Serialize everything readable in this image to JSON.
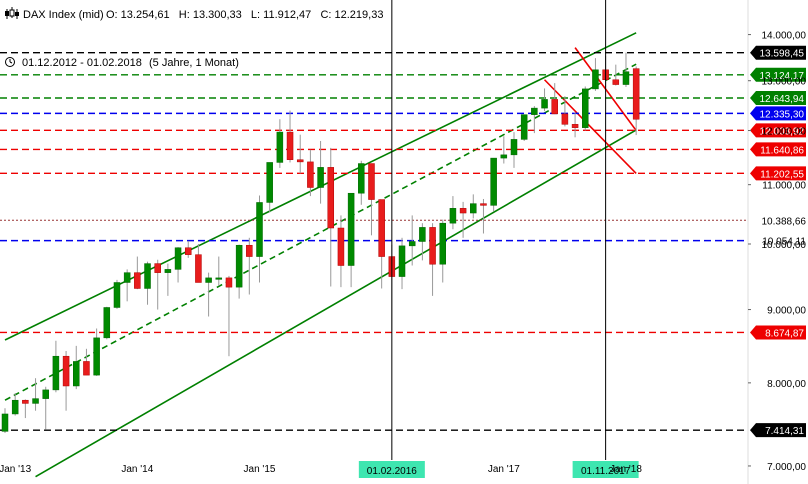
{
  "header": {
    "symbol_icon": "candlestick-icon",
    "title": "DAX Index (mid)",
    "ohlc": "O: 13.254,61   H: 13.300,33   L: 11.912,47   C: 12.219,33",
    "clock_icon": "clock-icon",
    "period": "01.12.2012 - 01.02.2018",
    "period_note": "(5 Jahre, 1 Monat)"
  },
  "chart_data": {
    "type": "candlestick",
    "title": "DAX Index (mid)",
    "interval": "monthly",
    "y_scale": "log",
    "ylim": [
      6800,
      14800
    ],
    "y_ticks": [
      {
        "value": 14000,
        "label": "14.000,00"
      },
      {
        "value": 13000,
        "label": "13.000,00"
      },
      {
        "value": 12000,
        "label": "12.000,00"
      },
      {
        "value": 11000,
        "label": "11.000,00"
      },
      {
        "value": 10000,
        "label": "10.000,00"
      },
      {
        "value": 9000,
        "label": "9.000,00"
      },
      {
        "value": 8000,
        "label": "8.000,00"
      },
      {
        "value": 7000,
        "label": "7.000,00"
      }
    ],
    "x_ticks": [
      {
        "date": "2013-01",
        "label": "Jan '13"
      },
      {
        "date": "2014-01",
        "label": "Jan '14"
      },
      {
        "date": "2015-01",
        "label": "Jan '15"
      },
      {
        "date": "2017-01",
        "label": "Jan '17"
      },
      {
        "date": "2018-01",
        "label": "Jan '18"
      }
    ],
    "vertical_markers": [
      {
        "date": "2016-02",
        "label": "01.02.2016"
      },
      {
        "date": "2017-11",
        "label": "01.11.2017"
      }
    ],
    "horizontal_levels": [
      {
        "value": 13598.45,
        "label": "13.598,45",
        "color": "#000000",
        "style": "dashed"
      },
      {
        "value": 13124.17,
        "label": "13.124,17",
        "color": "#008000",
        "style": "dashed"
      },
      {
        "value": 12643.94,
        "label": "12.643,94",
        "color": "#008000",
        "style": "dashed"
      },
      {
        "value": 12335.3,
        "label": "12.335,30",
        "color": "#0000ee",
        "style": "dashed"
      },
      {
        "value": 12003.92,
        "label": "12.003,92",
        "color": "#ee0000",
        "style": "dashed"
      },
      {
        "value": 11640.86,
        "label": "11.640,86",
        "color": "#ee0000",
        "style": "dashed"
      },
      {
        "value": 11202.55,
        "label": "11.202,55",
        "color": "#ee0000",
        "style": "dashed"
      },
      {
        "value": 10388.66,
        "label": "10.388,66",
        "color": "#993333",
        "style": "dotted"
      },
      {
        "value": 10054.11,
        "label": "10.054,11",
        "color": "#0000ee",
        "style": "dashed"
      },
      {
        "value": 8674.87,
        "label": "8.674,87",
        "color": "#ee0000",
        "style": "dashed"
      },
      {
        "value": 7414.31,
        "label": "7.414,31",
        "color": "#000000",
        "style": "dashed"
      }
    ],
    "trend_channels": [
      {
        "color": "#008000",
        "style": "solid",
        "from": {
          "date": "2012-12",
          "value": 8570
        },
        "to": {
          "date": "2018-02",
          "value": 14040
        }
      },
      {
        "color": "#008000",
        "style": "dashed",
        "from": {
          "date": "2012-12",
          "value": 7780
        },
        "to": {
          "date": "2018-02",
          "value": 13350
        }
      },
      {
        "color": "#008000",
        "style": "solid",
        "from": {
          "date": "2013-03",
          "value": 6880
        },
        "to": {
          "date": "2018-02",
          "value": 12010
        }
      },
      {
        "color": "#ee0000",
        "style": "solid",
        "from": {
          "date": "2017-08",
          "value": 13710
        },
        "to": {
          "date": "2018-02",
          "value": 12000
        }
      },
      {
        "color": "#ee0000",
        "style": "solid",
        "from": {
          "date": "2017-05",
          "value": 13020
        },
        "to": {
          "date": "2018-02",
          "value": 11200
        }
      }
    ],
    "series": [
      {
        "date": "2012-12",
        "open": 7400,
        "high": 7680,
        "low": 7380,
        "close": 7610
      },
      {
        "date": "2013-01",
        "open": 7610,
        "high": 7870,
        "low": 7590,
        "close": 7780
      },
      {
        "date": "2013-02",
        "open": 7780,
        "high": 7790,
        "low": 7560,
        "close": 7740
      },
      {
        "date": "2013-03",
        "open": 7740,
        "high": 8060,
        "low": 7650,
        "close": 7800
      },
      {
        "date": "2013-04",
        "open": 7800,
        "high": 7950,
        "low": 7420,
        "close": 7910
      },
      {
        "date": "2013-05",
        "open": 7910,
        "high": 8560,
        "low": 7880,
        "close": 8350
      },
      {
        "date": "2013-06",
        "open": 8350,
        "high": 8420,
        "low": 7650,
        "close": 7960
      },
      {
        "date": "2013-07",
        "open": 7960,
        "high": 8490,
        "low": 7920,
        "close": 8280
      },
      {
        "date": "2013-08",
        "open": 8280,
        "high": 8450,
        "low": 8100,
        "close": 8100
      },
      {
        "date": "2013-09",
        "open": 8100,
        "high": 8730,
        "low": 8090,
        "close": 8600
      },
      {
        "date": "2013-10",
        "open": 8600,
        "high": 9040,
        "low": 8580,
        "close": 9030
      },
      {
        "date": "2013-11",
        "open": 9030,
        "high": 9440,
        "low": 9010,
        "close": 9400
      },
      {
        "date": "2013-12",
        "open": 9400,
        "high": 9600,
        "low": 9120,
        "close": 9550
      },
      {
        "date": "2014-01",
        "open": 9550,
        "high": 9800,
        "low": 9300,
        "close": 9310
      },
      {
        "date": "2014-02",
        "open": 9310,
        "high": 9720,
        "low": 9070,
        "close": 9690
      },
      {
        "date": "2014-03",
        "open": 9690,
        "high": 9750,
        "low": 9000,
        "close": 9550
      },
      {
        "date": "2014-04",
        "open": 9550,
        "high": 9690,
        "low": 9200,
        "close": 9600
      },
      {
        "date": "2014-05",
        "open": 9600,
        "high": 9950,
        "low": 9400,
        "close": 9940
      },
      {
        "date": "2014-06",
        "open": 9940,
        "high": 10050,
        "low": 9780,
        "close": 9830
      },
      {
        "date": "2014-07",
        "open": 9830,
        "high": 10000,
        "low": 9400,
        "close": 9400
      },
      {
        "date": "2014-08",
        "open": 9400,
        "high": 9550,
        "low": 8900,
        "close": 9470
      },
      {
        "date": "2014-09",
        "open": 9470,
        "high": 9800,
        "low": 9350,
        "close": 9470
      },
      {
        "date": "2014-10",
        "open": 9470,
        "high": 9500,
        "low": 8350,
        "close": 9330
      },
      {
        "date": "2014-11",
        "open": 9330,
        "high": 9990,
        "low": 9160,
        "close": 9980
      },
      {
        "date": "2014-12",
        "open": 9980,
        "high": 10100,
        "low": 9220,
        "close": 9800
      },
      {
        "date": "2015-01",
        "open": 9800,
        "high": 10810,
        "low": 9400,
        "close": 10690
      },
      {
        "date": "2015-02",
        "open": 10690,
        "high": 11400,
        "low": 10520,
        "close": 11400
      },
      {
        "date": "2015-03",
        "open": 11400,
        "high": 12220,
        "low": 11300,
        "close": 11970
      },
      {
        "date": "2015-04",
        "open": 11970,
        "high": 12390,
        "low": 11400,
        "close": 11450
      },
      {
        "date": "2015-05",
        "open": 11450,
        "high": 11920,
        "low": 11200,
        "close": 11410
      },
      {
        "date": "2015-06",
        "open": 11410,
        "high": 11635,
        "low": 10800,
        "close": 10950
      },
      {
        "date": "2015-07",
        "open": 10950,
        "high": 11800,
        "low": 10670,
        "close": 11310
      },
      {
        "date": "2015-08",
        "open": 11310,
        "high": 11670,
        "low": 9340,
        "close": 10260
      },
      {
        "date": "2015-09",
        "open": 10260,
        "high": 10470,
        "low": 9330,
        "close": 9660
      },
      {
        "date": "2015-10",
        "open": 9660,
        "high": 10840,
        "low": 9330,
        "close": 10850
      },
      {
        "date": "2015-11",
        "open": 10850,
        "high": 11430,
        "low": 10650,
        "close": 11380
      },
      {
        "date": "2015-12",
        "open": 11380,
        "high": 11380,
        "low": 10140,
        "close": 10740
      },
      {
        "date": "2016-01",
        "open": 10740,
        "high": 10740,
        "low": 9310,
        "close": 9800
      },
      {
        "date": "2016-02",
        "open": 9800,
        "high": 9990,
        "low": 8700,
        "close": 9490
      },
      {
        "date": "2016-03",
        "open": 9490,
        "high": 10100,
        "low": 9300,
        "close": 9970
      },
      {
        "date": "2016-04",
        "open": 9970,
        "high": 10470,
        "low": 9660,
        "close": 10040
      },
      {
        "date": "2016-05",
        "open": 10040,
        "high": 10340,
        "low": 9740,
        "close": 10270
      },
      {
        "date": "2016-06",
        "open": 10270,
        "high": 10340,
        "low": 9200,
        "close": 9680
      },
      {
        "date": "2016-07",
        "open": 9680,
        "high": 10400,
        "low": 9400,
        "close": 10340
      },
      {
        "date": "2016-08",
        "open": 10340,
        "high": 10800,
        "low": 10240,
        "close": 10590
      },
      {
        "date": "2016-09",
        "open": 10590,
        "high": 10700,
        "low": 10100,
        "close": 10510
      },
      {
        "date": "2016-10",
        "open": 10510,
        "high": 10830,
        "low": 10420,
        "close": 10670
      },
      {
        "date": "2016-11",
        "open": 10670,
        "high": 10750,
        "low": 10170,
        "close": 10640
      },
      {
        "date": "2016-12",
        "open": 10640,
        "high": 11480,
        "low": 10540,
        "close": 11480
      },
      {
        "date": "2017-01",
        "open": 11480,
        "high": 11890,
        "low": 11380,
        "close": 11540
      },
      {
        "date": "2017-02",
        "open": 11540,
        "high": 11970,
        "low": 11300,
        "close": 11830
      },
      {
        "date": "2017-03",
        "open": 11830,
        "high": 12310,
        "low": 11800,
        "close": 12310
      },
      {
        "date": "2017-04",
        "open": 12310,
        "high": 12480,
        "low": 11950,
        "close": 12440
      },
      {
        "date": "2017-05",
        "open": 12440,
        "high": 12840,
        "low": 12380,
        "close": 12615
      },
      {
        "date": "2017-06",
        "open": 12615,
        "high": 12950,
        "low": 12320,
        "close": 12325
      },
      {
        "date": "2017-07",
        "open": 12325,
        "high": 12680,
        "low": 12080,
        "close": 12120
      },
      {
        "date": "2017-08",
        "open": 12120,
        "high": 12350,
        "low": 11870,
        "close": 12055
      },
      {
        "date": "2017-09",
        "open": 12055,
        "high": 12880,
        "low": 12000,
        "close": 12830
      },
      {
        "date": "2017-10",
        "open": 12830,
        "high": 13480,
        "low": 12790,
        "close": 13230
      },
      {
        "date": "2017-11",
        "open": 13230,
        "high": 13530,
        "low": 12860,
        "close": 13020
      },
      {
        "date": "2017-12",
        "open": 13020,
        "high": 13340,
        "low": 12900,
        "close": 12920
      },
      {
        "date": "2018-01",
        "open": 12920,
        "high": 13600,
        "low": 12870,
        "close": 13190
      },
      {
        "date": "2018-02",
        "open": 13254.61,
        "high": 13300.33,
        "low": 11912.47,
        "close": 12219.33
      }
    ]
  },
  "colors": {
    "up": "#008a00",
    "down": "#e81c1c",
    "marker_label_bg": "#3ee6b0",
    "axis_text": "#000000",
    "background": "#ffffff"
  }
}
